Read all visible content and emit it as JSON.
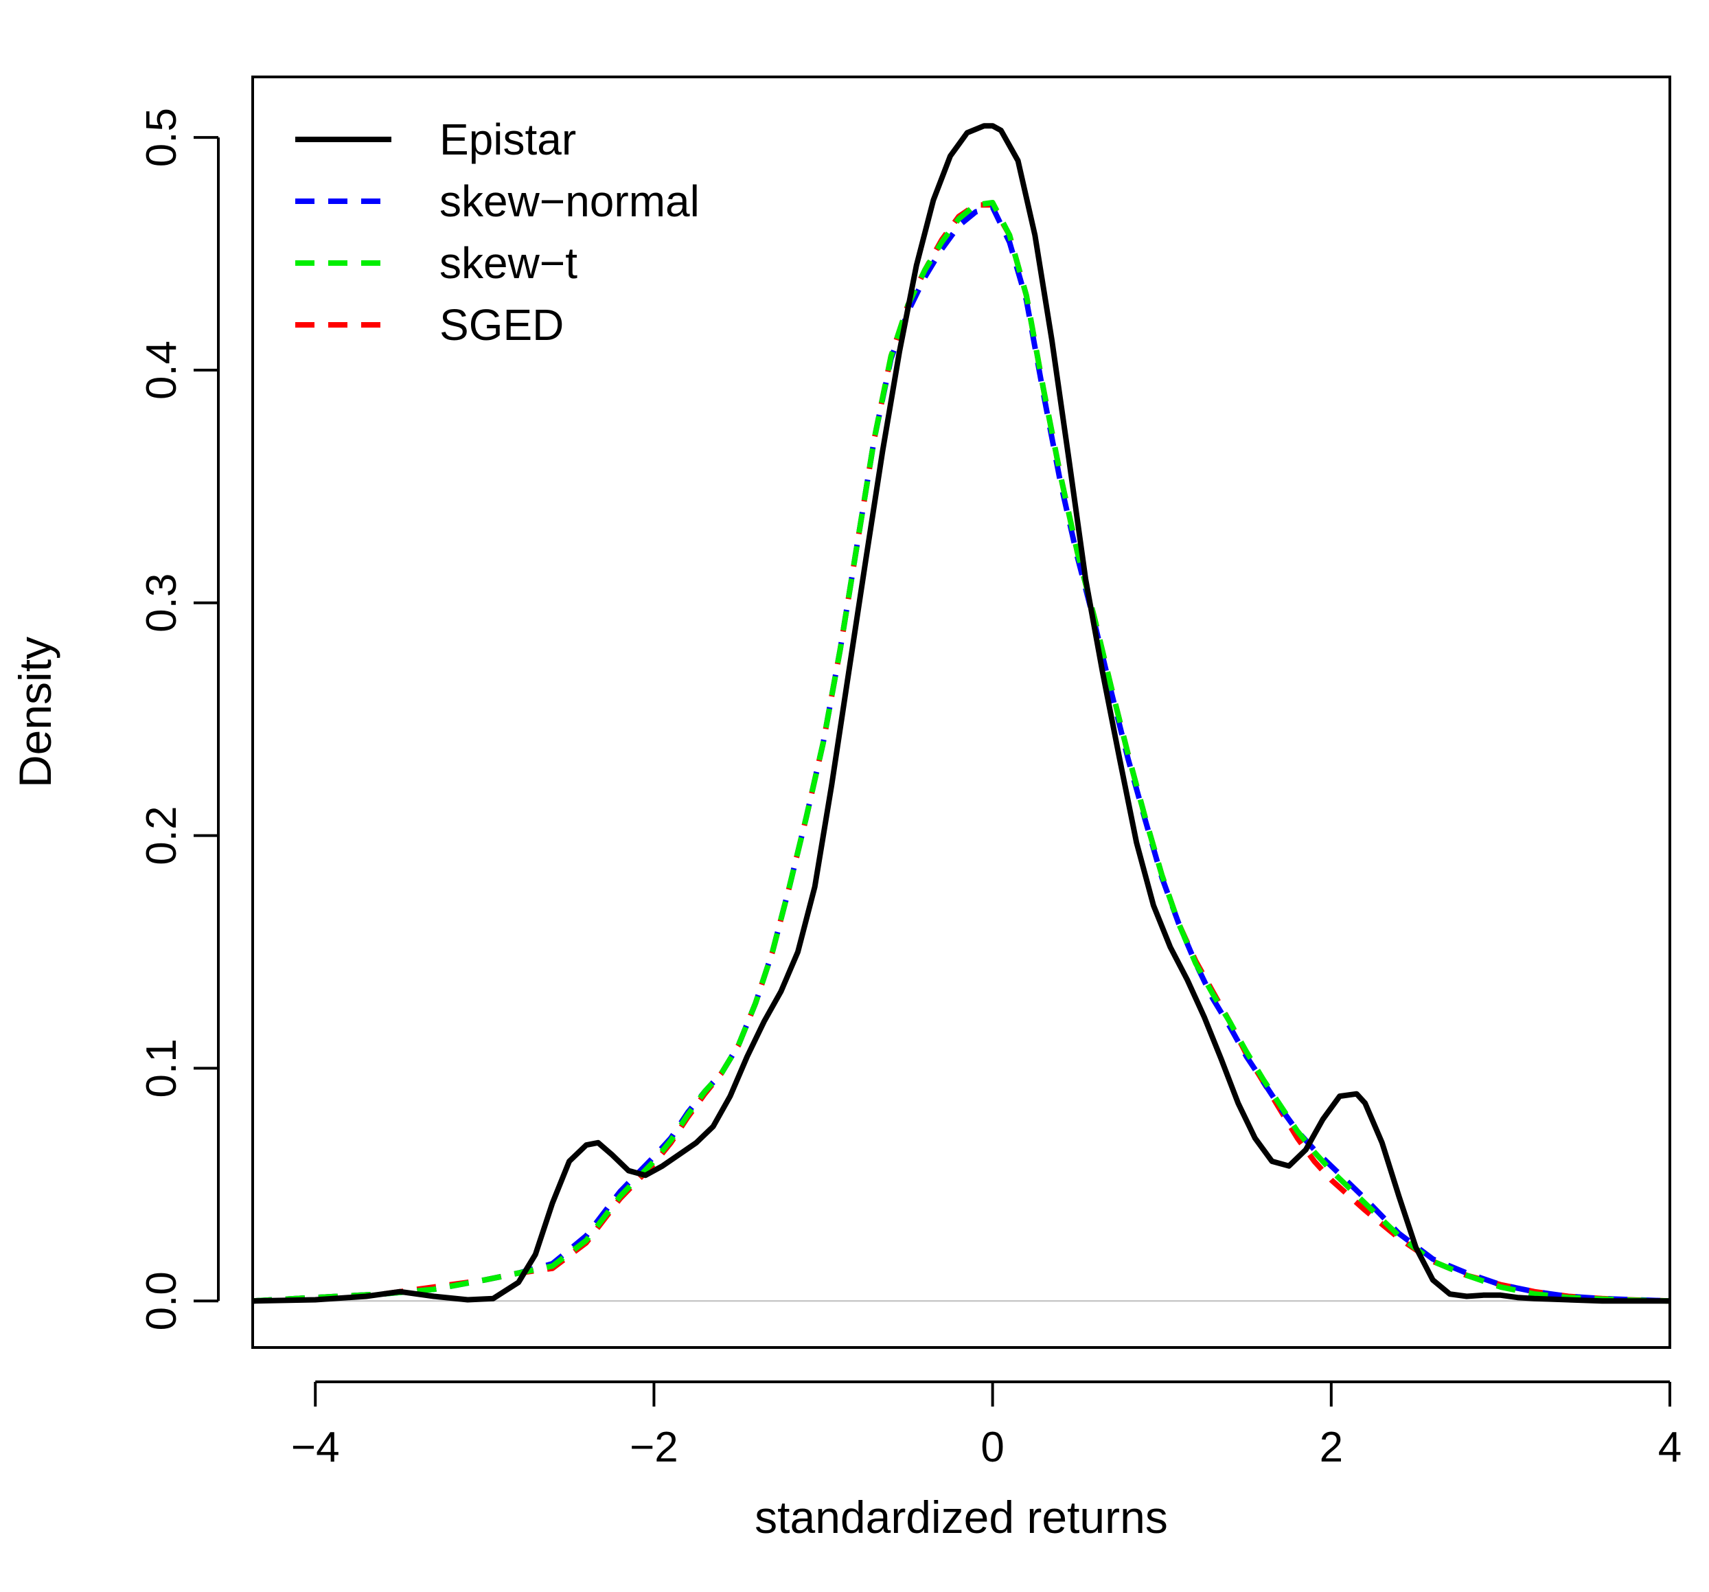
{
  "chart_data": {
    "type": "line",
    "title": "",
    "xlabel": "standardized returns",
    "ylabel": "Density",
    "xlim": [
      -4.37,
      4.0
    ],
    "ylim": [
      -0.02,
      0.526
    ],
    "xticks": [
      -4,
      -2,
      0,
      2,
      4
    ],
    "yticks": [
      0.0,
      0.1,
      0.2,
      0.3,
      0.4,
      0.5
    ],
    "xtick_labels": [
      "−4",
      "−2",
      "0",
      "2",
      "4"
    ],
    "ytick_labels": [
      "0.0",
      "0.1",
      "0.2",
      "0.3",
      "0.4",
      "0.5"
    ],
    "zero_line": true,
    "grid": false,
    "legend": {
      "position": "top-left"
    },
    "series": [
      {
        "name": "Epistar",
        "color": "#000000",
        "style": "solid",
        "x": [
          -4.37,
          -4.0,
          -3.7,
          -3.5,
          -3.3,
          -3.1,
          -2.95,
          -2.8,
          -2.7,
          -2.6,
          -2.5,
          -2.4,
          -2.33,
          -2.25,
          -2.15,
          -2.05,
          -1.95,
          -1.85,
          -1.75,
          -1.65,
          -1.55,
          -1.45,
          -1.35,
          -1.25,
          -1.15,
          -1.05,
          -0.95,
          -0.85,
          -0.75,
          -0.65,
          -0.55,
          -0.45,
          -0.35,
          -0.25,
          -0.15,
          -0.05,
          0.0,
          0.05,
          0.15,
          0.25,
          0.35,
          0.45,
          0.55,
          0.65,
          0.75,
          0.85,
          0.95,
          1.05,
          1.15,
          1.25,
          1.35,
          1.45,
          1.55,
          1.65,
          1.75,
          1.85,
          1.95,
          2.05,
          2.15,
          2.2,
          2.3,
          2.4,
          2.5,
          2.6,
          2.7,
          2.8,
          2.9,
          3.0,
          3.1,
          3.2,
          3.4,
          3.6,
          3.8,
          4.0
        ],
        "y": [
          0.0,
          0.0005,
          0.002,
          0.004,
          0.002,
          0.0005,
          0.001,
          0.008,
          0.02,
          0.042,
          0.06,
          0.067,
          0.068,
          0.063,
          0.056,
          0.054,
          0.058,
          0.063,
          0.068,
          0.075,
          0.088,
          0.105,
          0.12,
          0.133,
          0.15,
          0.178,
          0.222,
          0.27,
          0.318,
          0.365,
          0.408,
          0.445,
          0.473,
          0.492,
          0.502,
          0.505,
          0.505,
          0.503,
          0.49,
          0.458,
          0.413,
          0.362,
          0.31,
          0.27,
          0.233,
          0.197,
          0.17,
          0.152,
          0.138,
          0.122,
          0.104,
          0.085,
          0.07,
          0.06,
          0.058,
          0.065,
          0.078,
          0.088,
          0.089,
          0.085,
          0.068,
          0.045,
          0.023,
          0.009,
          0.003,
          0.002,
          0.0025,
          0.0025,
          0.0015,
          0.001,
          0.0005,
          0.0,
          0.0,
          0.0
        ]
      },
      {
        "name": "skew−normal",
        "color": "#0000ff",
        "style": "dashed",
        "x": [
          -4.37,
          -4.0,
          -3.6,
          -3.3,
          -3.0,
          -2.8,
          -2.6,
          -2.4,
          -2.2,
          -2.0,
          -1.9,
          -1.8,
          -1.7,
          -1.6,
          -1.5,
          -1.4,
          -1.3,
          -1.2,
          -1.1,
          -1.0,
          -0.9,
          -0.8,
          -0.7,
          -0.6,
          -0.5,
          -0.4,
          -0.3,
          -0.2,
          -0.1,
          0.0,
          0.1,
          0.2,
          0.3,
          0.4,
          0.5,
          0.6,
          0.7,
          0.8,
          0.9,
          1.0,
          1.1,
          1.2,
          1.3,
          1.4,
          1.5,
          1.6,
          1.7,
          1.8,
          1.9,
          2.0,
          2.2,
          2.4,
          2.6,
          2.8,
          3.0,
          3.2,
          3.4,
          3.6,
          3.8,
          4.0
        ],
        "y": [
          0.0,
          0.0015,
          0.003,
          0.005,
          0.009,
          0.012,
          0.016,
          0.028,
          0.047,
          0.062,
          0.07,
          0.081,
          0.09,
          0.098,
          0.11,
          0.128,
          0.15,
          0.178,
          0.208,
          0.24,
          0.28,
          0.325,
          0.37,
          0.405,
          0.425,
          0.44,
          0.452,
          0.462,
          0.468,
          0.47,
          0.455,
          0.43,
          0.39,
          0.352,
          0.32,
          0.292,
          0.262,
          0.233,
          0.207,
          0.182,
          0.162,
          0.145,
          0.13,
          0.118,
          0.105,
          0.094,
          0.083,
          0.073,
          0.065,
          0.058,
          0.044,
          0.029,
          0.018,
          0.012,
          0.007,
          0.004,
          0.002,
          0.001,
          0.0005,
          0.0
        ]
      },
      {
        "name": "skew−t",
        "color": "#00ee00",
        "style": "dashed",
        "x": [
          -4.37,
          -4.0,
          -3.6,
          -3.3,
          -3.0,
          -2.8,
          -2.6,
          -2.4,
          -2.2,
          -2.0,
          -1.9,
          -1.8,
          -1.7,
          -1.6,
          -1.5,
          -1.4,
          -1.3,
          -1.2,
          -1.1,
          -1.0,
          -0.9,
          -0.8,
          -0.7,
          -0.6,
          -0.5,
          -0.4,
          -0.3,
          -0.2,
          -0.1,
          0.0,
          0.1,
          0.2,
          0.3,
          0.4,
          0.5,
          0.6,
          0.7,
          0.8,
          0.9,
          1.0,
          1.1,
          1.2,
          1.3,
          1.4,
          1.5,
          1.6,
          1.7,
          1.8,
          1.9,
          2.0,
          2.2,
          2.4,
          2.6,
          2.8,
          3.0,
          3.2,
          3.4,
          3.6,
          3.8,
          4.0
        ],
        "y": [
          0.0,
          0.0015,
          0.003,
          0.005,
          0.009,
          0.012,
          0.015,
          0.026,
          0.045,
          0.06,
          0.069,
          0.08,
          0.09,
          0.098,
          0.11,
          0.128,
          0.15,
          0.178,
          0.208,
          0.24,
          0.28,
          0.325,
          0.37,
          0.406,
          0.428,
          0.443,
          0.455,
          0.465,
          0.471,
          0.472,
          0.458,
          0.432,
          0.392,
          0.355,
          0.322,
          0.294,
          0.264,
          0.235,
          0.208,
          0.183,
          0.162,
          0.145,
          0.132,
          0.12,
          0.107,
          0.095,
          0.084,
          0.073,
          0.064,
          0.056,
          0.042,
          0.028,
          0.017,
          0.011,
          0.006,
          0.003,
          0.0015,
          0.0008,
          0.0003,
          0.0
        ]
      },
      {
        "name": "SGED",
        "color": "#ff0000",
        "style": "dashed",
        "x": [
          -4.37,
          -4.0,
          -3.6,
          -3.3,
          -3.0,
          -2.8,
          -2.6,
          -2.4,
          -2.2,
          -2.0,
          -1.9,
          -1.8,
          -1.7,
          -1.6,
          -1.5,
          -1.4,
          -1.3,
          -1.2,
          -1.1,
          -1.0,
          -0.9,
          -0.8,
          -0.7,
          -0.6,
          -0.5,
          -0.4,
          -0.3,
          -0.2,
          -0.1,
          0.0,
          0.1,
          0.2,
          0.3,
          0.4,
          0.5,
          0.6,
          0.7,
          0.8,
          0.9,
          1.0,
          1.1,
          1.2,
          1.3,
          1.4,
          1.5,
          1.6,
          1.7,
          1.8,
          1.9,
          2.0,
          2.2,
          2.4,
          2.6,
          2.8,
          3.0,
          3.2,
          3.4,
          3.6,
          3.8,
          4.0
        ],
        "y": [
          0.0,
          0.0015,
          0.003,
          0.006,
          0.009,
          0.012,
          0.014,
          0.025,
          0.044,
          0.059,
          0.068,
          0.079,
          0.089,
          0.098,
          0.11,
          0.128,
          0.15,
          0.178,
          0.208,
          0.24,
          0.28,
          0.325,
          0.37,
          0.406,
          0.428,
          0.443,
          0.456,
          0.466,
          0.471,
          0.471,
          0.458,
          0.432,
          0.392,
          0.355,
          0.322,
          0.294,
          0.264,
          0.235,
          0.208,
          0.183,
          0.162,
          0.146,
          0.133,
          0.12,
          0.106,
          0.094,
          0.082,
          0.07,
          0.06,
          0.052,
          0.039,
          0.027,
          0.017,
          0.011,
          0.007,
          0.004,
          0.002,
          0.001,
          0.0004,
          0.0
        ]
      }
    ]
  }
}
